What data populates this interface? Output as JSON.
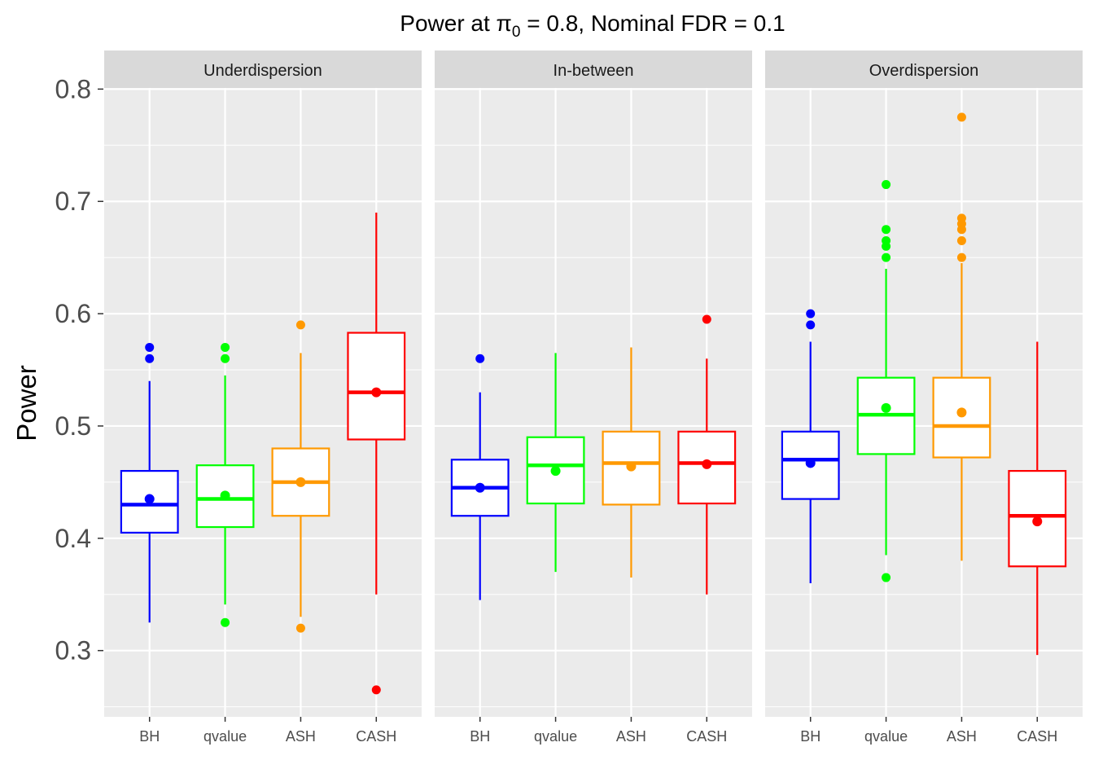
{
  "chart_data": {
    "type": "box",
    "title": [
      "Power at π",
      "0",
      " = 0.8, Nominal FDR = 0.1"
    ],
    "ylabel": "Power",
    "categories": [
      "BH",
      "qvalue",
      "ASH",
      "CASH"
    ],
    "colors": [
      "#0000ff",
      "#00ff00",
      "#ff9900",
      "#ff0000"
    ],
    "ylim": [
      0.241,
      0.801
    ],
    "yticks": [
      0.3,
      0.4,
      0.5,
      0.6,
      0.7,
      0.8
    ],
    "yminor": [
      0.25,
      0.35,
      0.45,
      0.55,
      0.65,
      0.75
    ],
    "grid": true,
    "panels": [
      {
        "name": "Underdispersion",
        "boxes": [
          {
            "low": 0.325,
            "q1": 0.405,
            "median": 0.43,
            "q3": 0.46,
            "high": 0.54,
            "mean": 0.435,
            "outliers": [
              0.57,
              0.56
            ]
          },
          {
            "low": 0.341,
            "q1": 0.41,
            "median": 0.435,
            "q3": 0.465,
            "high": 0.545,
            "mean": 0.438,
            "outliers": [
              0.57,
              0.56,
              0.325
            ]
          },
          {
            "low": 0.33,
            "q1": 0.42,
            "median": 0.45,
            "q3": 0.48,
            "high": 0.565,
            "mean": 0.45,
            "outliers": [
              0.59,
              0.32
            ]
          },
          {
            "low": 0.35,
            "q1": 0.488,
            "median": 0.53,
            "q3": 0.583,
            "high": 0.69,
            "mean": 0.53,
            "outliers": [
              0.265
            ]
          }
        ]
      },
      {
        "name": "In-between",
        "boxes": [
          {
            "low": 0.345,
            "q1": 0.42,
            "median": 0.445,
            "q3": 0.47,
            "high": 0.53,
            "mean": 0.445,
            "outliers": [
              0.56
            ]
          },
          {
            "low": 0.37,
            "q1": 0.431,
            "median": 0.465,
            "q3": 0.49,
            "high": 0.565,
            "mean": 0.46,
            "outliers": []
          },
          {
            "low": 0.365,
            "q1": 0.43,
            "median": 0.467,
            "q3": 0.495,
            "high": 0.57,
            "mean": 0.464,
            "outliers": []
          },
          {
            "low": 0.35,
            "q1": 0.431,
            "median": 0.467,
            "q3": 0.495,
            "high": 0.56,
            "mean": 0.466,
            "outliers": [
              0.595
            ]
          }
        ]
      },
      {
        "name": "Overdispersion",
        "boxes": [
          {
            "low": 0.36,
            "q1": 0.435,
            "median": 0.47,
            "q3": 0.495,
            "high": 0.575,
            "mean": 0.467,
            "outliers": [
              0.6,
              0.59
            ]
          },
          {
            "low": 0.385,
            "q1": 0.475,
            "median": 0.51,
            "q3": 0.543,
            "high": 0.64,
            "mean": 0.516,
            "outliers": [
              0.715,
              0.675,
              0.665,
              0.66,
              0.65,
              0.365
            ]
          },
          {
            "low": 0.38,
            "q1": 0.472,
            "median": 0.5,
            "q3": 0.543,
            "high": 0.645,
            "mean": 0.512,
            "outliers": [
              0.775,
              0.685,
              0.68,
              0.675,
              0.665,
              0.65
            ]
          },
          {
            "low": 0.296,
            "q1": 0.375,
            "median": 0.42,
            "q3": 0.46,
            "high": 0.575,
            "mean": 0.415,
            "outliers": []
          }
        ]
      }
    ]
  }
}
